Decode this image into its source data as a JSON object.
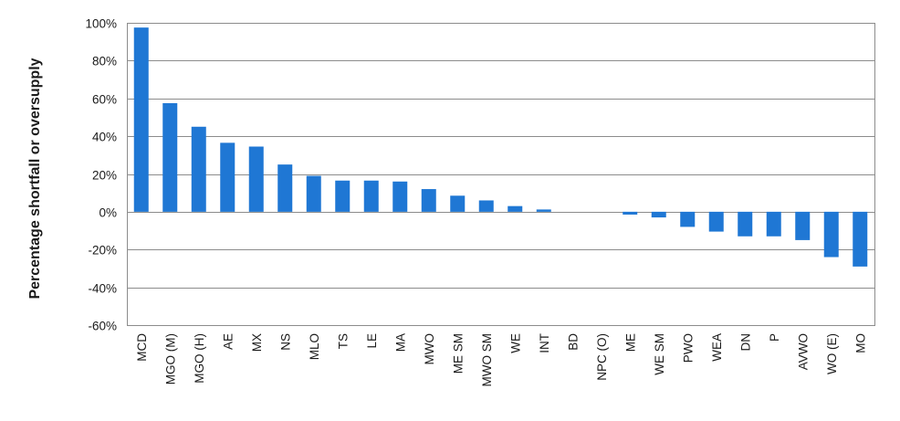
{
  "chart_data": {
    "type": "bar",
    "title": "",
    "xlabel": "",
    "ylabel": "Percentage shortfall or oversupply",
    "ylim": [
      -60,
      100
    ],
    "ytick_step": 20,
    "ytick_suffix": "%",
    "grid": "horizontal",
    "bar_color": "#1f77d4",
    "categories": [
      "MCD",
      "MGO (M)",
      "MGO (H)",
      "AE",
      "MX",
      "NS",
      "MLO",
      "TS",
      "LE",
      "MA",
      "MWO",
      "ME SM",
      "MWO SM",
      "WE",
      "INT",
      "BD",
      "NPC (O)",
      "ME",
      "WE SM",
      "PWO",
      "WEA",
      "DN",
      "P",
      "AVWO",
      "WO (E)",
      "MO"
    ],
    "values": [
      97.5,
      57.5,
      45,
      36.5,
      34.5,
      25,
      19,
      16.5,
      16.5,
      16,
      12,
      8.5,
      6,
      3,
      1.2,
      0,
      0,
      -1.5,
      -3,
      -8,
      -10.5,
      -13,
      -13,
      -15,
      -24,
      -29
    ]
  }
}
